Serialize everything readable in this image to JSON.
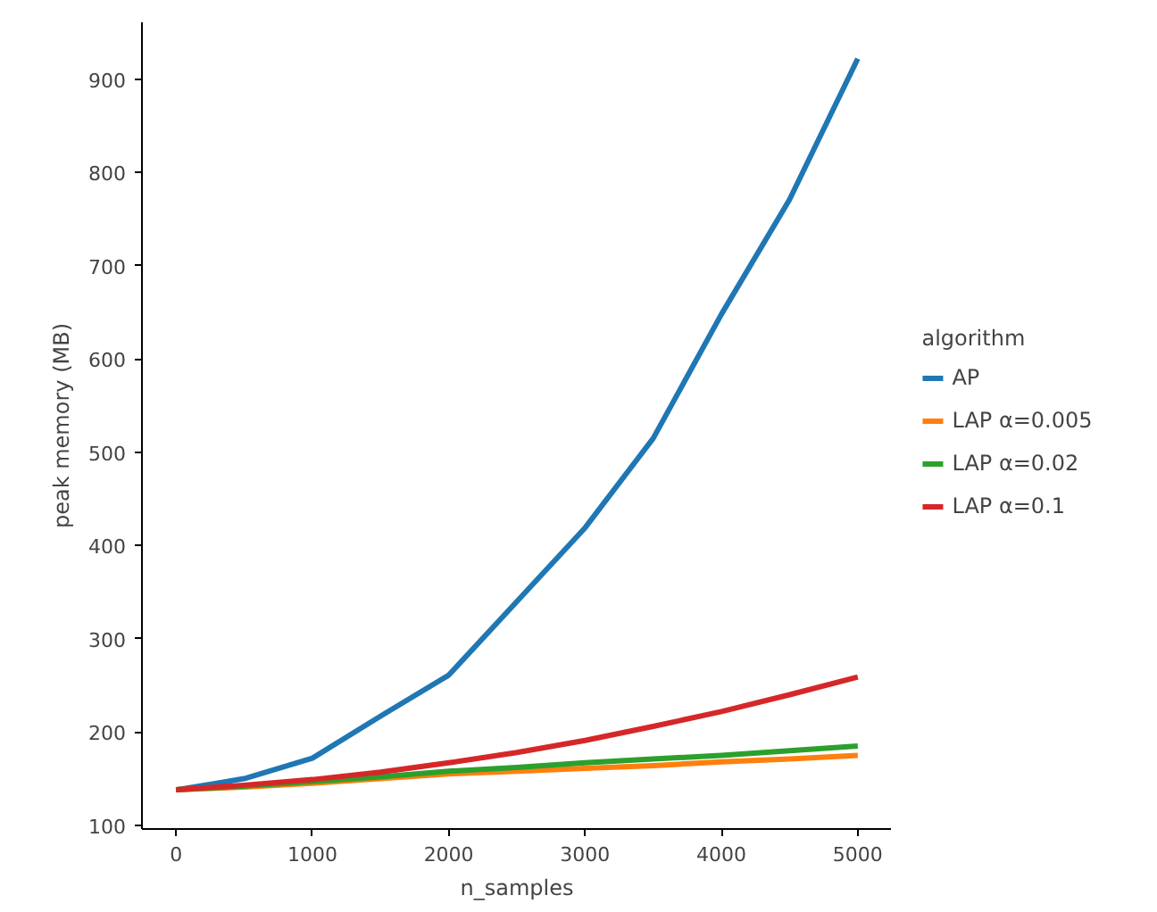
{
  "chart_data": {
    "type": "line",
    "xlabel": "n_samples",
    "ylabel": "peak memory (MB)",
    "legend_title": "algorithm",
    "x": [
      0,
      500,
      1000,
      1500,
      2000,
      2500,
      3000,
      3500,
      4000,
      4500,
      5000
    ],
    "series": [
      {
        "name": "AP",
        "color": "#1f77b4",
        "values": [
          138,
          150,
          172,
          217,
          261,
          340,
          419,
          515,
          648,
          771,
          922
        ]
      },
      {
        "name": "LAP α=0.005",
        "color": "#ff7f0e",
        "values": [
          138,
          141,
          145,
          150,
          155,
          158,
          161,
          164,
          168,
          171,
          175
        ]
      },
      {
        "name": "LAP α=0.02",
        "color": "#2ca02c",
        "values": [
          138,
          142,
          147,
          152,
          158,
          162,
          167,
          171,
          175,
          180,
          185
        ]
      },
      {
        "name": "LAP α=0.1",
        "color": "#d62728",
        "values": [
          138,
          143,
          149,
          157,
          167,
          178,
          191,
          206,
          222,
          240,
          259
        ]
      }
    ],
    "xlim": [
      -250,
      5250
    ],
    "ylim": [
      96,
      961
    ],
    "xticks": [
      0,
      1000,
      2000,
      3000,
      4000,
      5000
    ],
    "yticks": [
      100,
      200,
      300,
      400,
      500,
      600,
      700,
      800,
      900
    ],
    "grid": false,
    "legend": "right",
    "line_style": "solid"
  }
}
